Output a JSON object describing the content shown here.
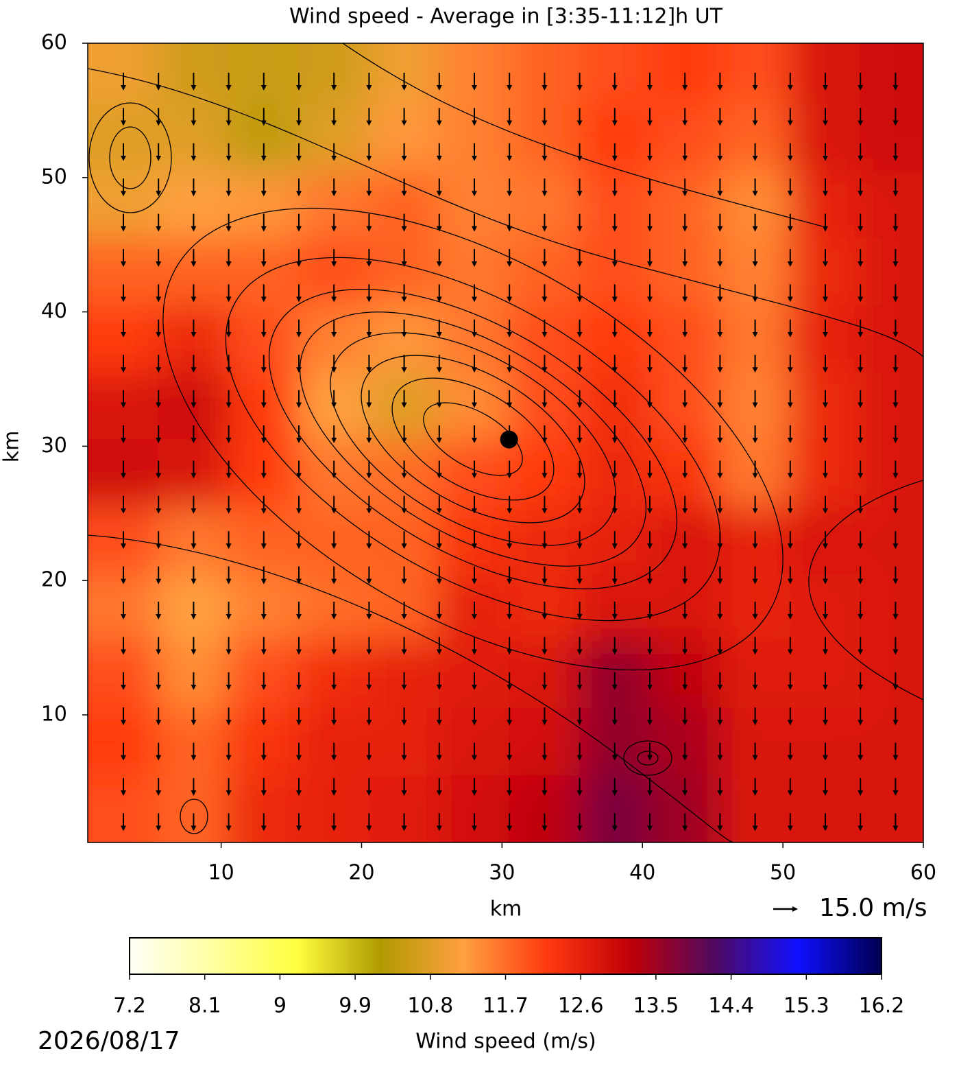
{
  "chart_data": {
    "type": "heatmap",
    "title": "Wind speed - Average in [3:35-11:12]h UT",
    "xlabel": "km",
    "ylabel": "km",
    "xlim": [
      0.5,
      60
    ],
    "ylim": [
      0.5,
      60
    ],
    "xticks": [
      10,
      20,
      30,
      40,
      50,
      60
    ],
    "yticks": [
      10,
      20,
      30,
      40,
      50,
      60
    ],
    "x": [
      3,
      8,
      13,
      18,
      23,
      28,
      33,
      38,
      43,
      48,
      53,
      58
    ],
    "y": [
      58,
      53,
      48,
      43,
      38,
      33,
      28,
      23,
      18,
      13,
      8,
      3
    ],
    "z": [
      [
        11.0,
        10.6,
        10.5,
        10.6,
        11.0,
        11.5,
        11.8,
        12.0,
        12.2,
        12.0,
        12.8,
        13.0
      ],
      [
        10.8,
        10.8,
        10.4,
        10.8,
        11.3,
        11.5,
        11.8,
        12.2,
        12.0,
        11.8,
        12.8,
        13.0
      ],
      [
        11.0,
        11.2,
        11.3,
        11.6,
        11.8,
        11.5,
        11.6,
        12.0,
        11.8,
        11.4,
        12.6,
        12.8
      ],
      [
        11.8,
        11.8,
        11.8,
        12.0,
        11.8,
        11.6,
        11.8,
        12.0,
        11.8,
        11.5,
        12.5,
        12.8
      ],
      [
        12.2,
        12.5,
        12.0,
        11.5,
        11.3,
        11.6,
        12.0,
        12.2,
        12.0,
        11.6,
        12.6,
        12.8
      ],
      [
        12.8,
        13.0,
        12.2,
        11.2,
        10.8,
        11.4,
        12.0,
        12.4,
        12.0,
        11.5,
        12.5,
        12.8
      ],
      [
        13.0,
        12.8,
        12.2,
        11.6,
        11.7,
        12.0,
        12.2,
        12.5,
        12.3,
        11.6,
        12.5,
        12.8
      ],
      [
        12.0,
        11.6,
        11.8,
        11.8,
        11.8,
        12.3,
        12.5,
        12.6,
        12.8,
        12.6,
        12.8,
        12.8
      ],
      [
        11.6,
        11.2,
        11.5,
        11.7,
        11.8,
        12.6,
        12.5,
        12.8,
        12.8,
        12.6,
        12.7,
        12.8
      ],
      [
        12.0,
        11.4,
        12.0,
        12.4,
        12.6,
        12.7,
        12.8,
        13.6,
        13.2,
        12.7,
        12.7,
        12.8
      ],
      [
        12.2,
        11.8,
        12.3,
        12.6,
        12.6,
        12.8,
        12.9,
        13.6,
        13.4,
        12.8,
        12.8,
        12.8
      ],
      [
        12.0,
        11.8,
        12.5,
        12.6,
        12.7,
        12.9,
        13.2,
        13.8,
        13.5,
        12.8,
        12.8,
        12.8
      ]
    ],
    "marker": {
      "x": 30.5,
      "y": 30.5
    },
    "quiver_key": "15.0 m/s",
    "colorbar_label": "Wind speed (m/s)",
    "clim": [
      7.2,
      16.2
    ],
    "cticks": [
      7.2,
      8.1,
      9.0,
      9.9,
      10.8,
      11.7,
      12.6,
      13.5,
      14.4,
      15.3,
      16.2
    ],
    "colormap": [
      "#fffff8",
      "#ffffa0",
      "#ffff40",
      "#b09a00",
      "#ffa040",
      "#ff3a10",
      "#c00008",
      "#500a60",
      "#1010ff",
      "#000050"
    ],
    "date": "2026/08/17"
  }
}
